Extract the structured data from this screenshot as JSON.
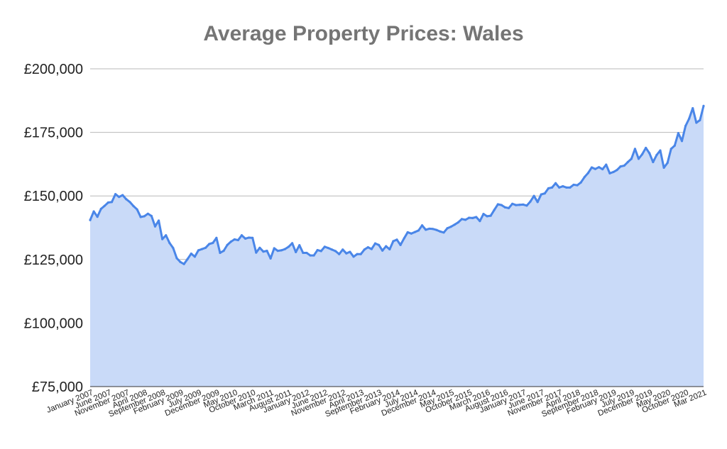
{
  "chart_data": {
    "type": "area",
    "title": "Average Property Prices: Wales",
    "xlabel": "",
    "ylabel": "",
    "ylim": [
      75000,
      200000
    ],
    "yticks": [
      {
        "value": 200000,
        "label": "£200,000"
      },
      {
        "value": 175000,
        "label": "£175,000"
      },
      {
        "value": 150000,
        "label": "£150,000"
      },
      {
        "value": 125000,
        "label": "£125,000"
      },
      {
        "value": 100000,
        "label": "£100,000"
      },
      {
        "value": 75000,
        "label": "£75,000"
      }
    ],
    "xticks": [
      {
        "index": 0,
        "label": "January 2007"
      },
      {
        "index": 5,
        "label": "June 2007"
      },
      {
        "index": 10,
        "label": "November 2007"
      },
      {
        "index": 15,
        "label": "April 2008"
      },
      {
        "index": 20,
        "label": "September 2008"
      },
      {
        "index": 25,
        "label": "February 2009"
      },
      {
        "index": 30,
        "label": "July 2009"
      },
      {
        "index": 35,
        "label": "December 2009"
      },
      {
        "index": 40,
        "label": "May 2010"
      },
      {
        "index": 45,
        "label": "October 2010"
      },
      {
        "index": 50,
        "label": "March 2011"
      },
      {
        "index": 55,
        "label": "August 2011"
      },
      {
        "index": 60,
        "label": "January 2012"
      },
      {
        "index": 65,
        "label": "June 2012"
      },
      {
        "index": 70,
        "label": "November 2012"
      },
      {
        "index": 75,
        "label": "April 2013"
      },
      {
        "index": 80,
        "label": "September 2013"
      },
      {
        "index": 85,
        "label": "February 2014"
      },
      {
        "index": 90,
        "label": "July 2014"
      },
      {
        "index": 95,
        "label": "December 2014"
      },
      {
        "index": 100,
        "label": "May 2015"
      },
      {
        "index": 105,
        "label": "October 2015"
      },
      {
        "index": 110,
        "label": "March 2016"
      },
      {
        "index": 115,
        "label": "August 2016"
      },
      {
        "index": 120,
        "label": "January 2017"
      },
      {
        "index": 125,
        "label": "June 2017"
      },
      {
        "index": 130,
        "label": "November 2017"
      },
      {
        "index": 135,
        "label": "April 2018"
      },
      {
        "index": 140,
        "label": "September 2018"
      },
      {
        "index": 145,
        "label": "February 2019"
      },
      {
        "index": 150,
        "label": "July 2019"
      },
      {
        "index": 155,
        "label": "December 2019"
      },
      {
        "index": 160,
        "label": "May 2020"
      },
      {
        "index": 165,
        "label": "October 2020"
      },
      {
        "index": 170,
        "label": "Mar 2021"
      }
    ],
    "series": [
      {
        "name": "Average Property Prices: Wales",
        "start": "January 2007",
        "end": "March 2021",
        "frequency": "monthly",
        "line_color": "#4a86e8",
        "fill_color": "#c9daf8",
        "values": [
          140500,
          143900,
          141800,
          144900,
          146100,
          147400,
          147600,
          150700,
          149600,
          150300,
          148700,
          147600,
          146000,
          144700,
          141700,
          142000,
          143000,
          142100,
          138000,
          140300,
          133000,
          134500,
          131500,
          129500,
          125500,
          124000,
          123200,
          125200,
          127300,
          126100,
          128600,
          129100,
          129600,
          131100,
          131500,
          133500,
          127600,
          128400,
          130700,
          132000,
          132900,
          132600,
          134500,
          133200,
          133600,
          133500,
          127700,
          129600,
          128100,
          128400,
          125400,
          129400,
          128400,
          128600,
          129100,
          130000,
          131400,
          127900,
          130600,
          127600,
          127600,
          126600,
          126600,
          128700,
          128300,
          130000,
          129500,
          128900,
          128300,
          127100,
          128900,
          127400,
          128000,
          126100,
          127100,
          127100,
          128900,
          129800,
          129100,
          131300,
          130700,
          128500,
          130200,
          129000,
          132200,
          132800,
          130700,
          133300,
          135700,
          135200,
          135800,
          136400,
          138400,
          136700,
          137100,
          137000,
          136600,
          136000,
          135600,
          137300,
          137900,
          138700,
          139600,
          140900,
          140600,
          141400,
          141300,
          141700,
          140100,
          142900,
          142000,
          142200,
          144500,
          146700,
          146400,
          145500,
          145200,
          146900,
          146400,
          146500,
          146600,
          146200,
          147800,
          150000,
          147600,
          150600,
          151000,
          153000,
          153300,
          155000,
          153300,
          153800,
          153300,
          153300,
          154400,
          154200,
          155300,
          157400,
          159000,
          161200,
          160600,
          161300,
          160500,
          162300,
          158900,
          159400,
          160200,
          161600,
          161900,
          163300,
          164600,
          168500,
          164600,
          166400,
          168900,
          166800,
          163300,
          166100,
          167900,
          161100,
          163000,
          168500,
          169800,
          174700,
          171600,
          177500,
          180400,
          184500,
          178800,
          179800,
          185400
        ]
      }
    ]
  }
}
